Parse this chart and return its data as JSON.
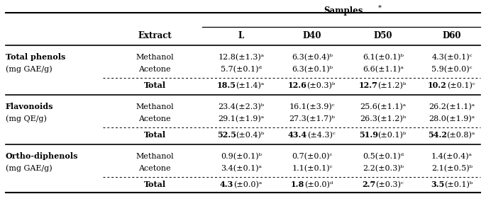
{
  "title": "Samples",
  "title_sup": "*",
  "col_headers": [
    "Extract",
    "L",
    "D40",
    "D50",
    "D60"
  ],
  "sections": [
    {
      "label1": "Total phenols",
      "label2": "(mg GAE/g)",
      "rows": [
        [
          "Methanol",
          "12.8(±1.3)ᵃ",
          "6.3(±0.4)ᵇ",
          "6.1(±0.1)ᵇ",
          "4.3(±0.1)ᶜ"
        ],
        [
          "Acetone",
          "5.7(±0.1)ᵈ",
          "6.3(±0.1)ᵇ",
          "6.6(±1.1)ᵃ",
          "5.9(±0.0)ᶜ"
        ]
      ],
      "total": [
        "Total",
        "18.5(±1.4)ᵃ",
        "12.6(±0.3)ᵇ",
        "12.7(±1.2)ᵇ",
        "10.2(±0.1)ᶜ"
      ],
      "total_bold": [
        "18.5",
        "12.6",
        "12.7",
        "10.2"
      ]
    },
    {
      "label1": "Flavonoids",
      "label2": "(mg QE/g)",
      "rows": [
        [
          "Methanol",
          "23.4(±2.3)ᵇ",
          "16.1(±3.9)ᶜ",
          "25.6(±1.1)ᵃ",
          "26.2(±1.1)ᵃ"
        ],
        [
          "Acetone",
          "29.1(±1.9)ᵃ",
          "27.3(±1.7)ᵇ",
          "26.3(±1.2)ᵇ",
          "28.0(±1.9)ᵃ"
        ]
      ],
      "total": [
        "Total",
        "52.5(±0.4)ᵇ",
        "43.4(±4.3)ᶜ",
        "51.9(±0.1)ᵇ",
        "54.2(±0.8)ᵃ"
      ],
      "total_bold": [
        "52.5",
        "43.4",
        "51.9",
        "54.2"
      ]
    },
    {
      "label1": "Ortho-diphenols",
      "label2": "(mg GAE/g)",
      "rows": [
        [
          "Methanol",
          "0.9(±0.1)ᵇ",
          "0.7(±0.0)ᶜ",
          "0.5(±0.1)ᵈ",
          "1.4(±0.4)ᵃ"
        ],
        [
          "Acetone",
          "3.4(±0.1)ᵃ",
          "1.1(±0.1)ᶜ",
          "2.2(±0.3)ᵇ",
          "2.1(±0.5)ᵇ"
        ]
      ],
      "total": [
        "Total",
        "4.3(±0.0)ᵃ",
        "1.8(±0.0)ᵈ",
        "2.7(±0.3)ᶜ",
        "3.5(±0.1)ᵇ"
      ],
      "total_bold": [
        "4.3",
        "1.8",
        "2.7",
        "3.5"
      ]
    }
  ],
  "bg_color": "#ffffff",
  "text_color": "#000000",
  "fs": 8.0,
  "fs_header": 8.5
}
